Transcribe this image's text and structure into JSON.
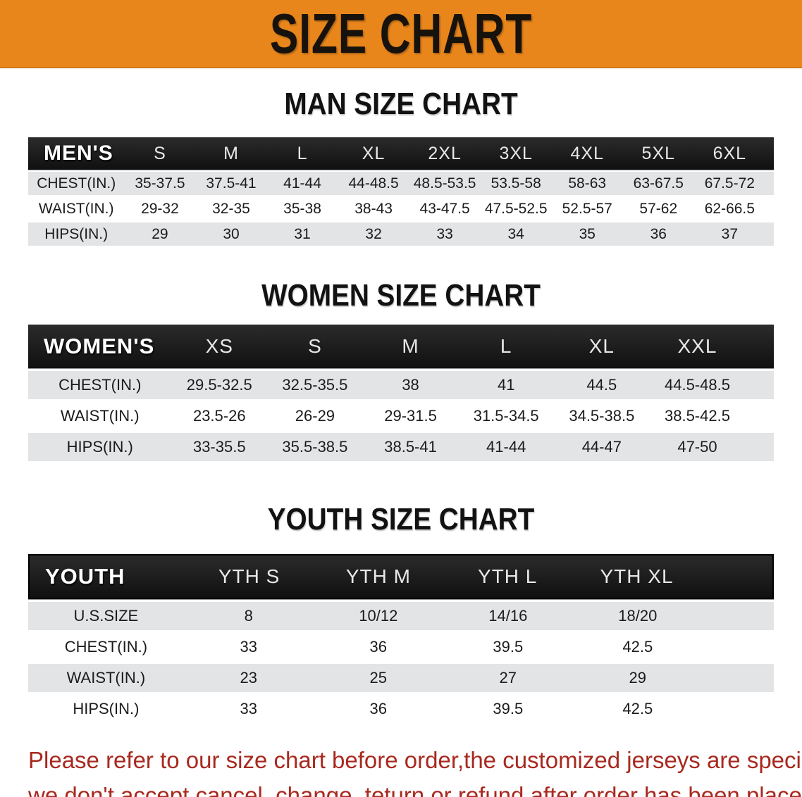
{
  "banner": {
    "title": "SIZE CHART"
  },
  "sections": [
    {
      "heading": "MAN SIZE CHART",
      "table": {
        "header": [
          "MEN'S",
          "S",
          "M",
          "L",
          "XL",
          "2XL",
          "3XL",
          "4XL",
          "5XL",
          "6XL"
        ],
        "rows": [
          {
            "label": "CHEST(IN.)",
            "values": [
              "35-37.5",
              "37.5-41",
              "41-44",
              "44-48.5",
              "48.5-53.5",
              "53.5-58",
              "58-63",
              "63-67.5",
              "67.5-72"
            ]
          },
          {
            "label": "WAIST(IN.)",
            "values": [
              "29-32",
              "32-35",
              "35-38",
              "38-43",
              "43-47.5",
              "47.5-52.5",
              "52.5-57",
              "57-62",
              "62-66.5"
            ]
          },
          {
            "label": "HIPS(IN.)",
            "values": [
              "29",
              "30",
              "31",
              "32",
              "33",
              "34",
              "35",
              "36",
              "37"
            ]
          }
        ]
      }
    },
    {
      "heading": "WOMEN SIZE CHART",
      "table": {
        "header": [
          "WOMEN'S",
          "XS",
          "S",
          "M",
          "L",
          "XL",
          "XXL"
        ],
        "rows": [
          {
            "label": "CHEST(IN.)",
            "values": [
              "29.5-32.5",
              "32.5-35.5",
              "38",
              "41",
              "44.5",
              "44.5-48.5"
            ]
          },
          {
            "label": "WAIST(IN.)",
            "values": [
              "23.5-26",
              "26-29",
              "29-31.5",
              "31.5-34.5",
              "34.5-38.5",
              "38.5-42.5"
            ]
          },
          {
            "label": "HIPS(IN.)",
            "values": [
              "33-35.5",
              "35.5-38.5",
              "38.5-41",
              "41-44",
              "44-47",
              "47-50"
            ]
          }
        ]
      }
    },
    {
      "heading": "YOUTH SIZE CHART",
      "table": {
        "header": [
          "YOUTH",
          "YTH S",
          "YTH M",
          "YTH L",
          "YTH XL"
        ],
        "rows": [
          {
            "label": "U.S.SIZE",
            "values": [
              "8",
              "10/12",
              "14/16",
              "18/20"
            ]
          },
          {
            "label": "CHEST(IN.)",
            "values": [
              "33",
              "36",
              "39.5",
              "42.5"
            ]
          },
          {
            "label": "WAIST(IN.)",
            "values": [
              "23",
              "25",
              "27",
              "29"
            ]
          },
          {
            "label": "HIPS(IN.)",
            "values": [
              "33",
              "36",
              "39.5",
              "42.5"
            ]
          }
        ]
      }
    }
  ],
  "disclaimer": {
    "line1": "Please refer to our size chart before order,the customized jerseys are special products,",
    "line2": "we don't accept cancel, change, teturn or refund after order has been placed!"
  },
  "colors": {
    "banner_bg": "#E8861C",
    "header_bar": "#151515",
    "row_shade": "#E3E4E6",
    "disclaimer_red": "#A8291F"
  }
}
